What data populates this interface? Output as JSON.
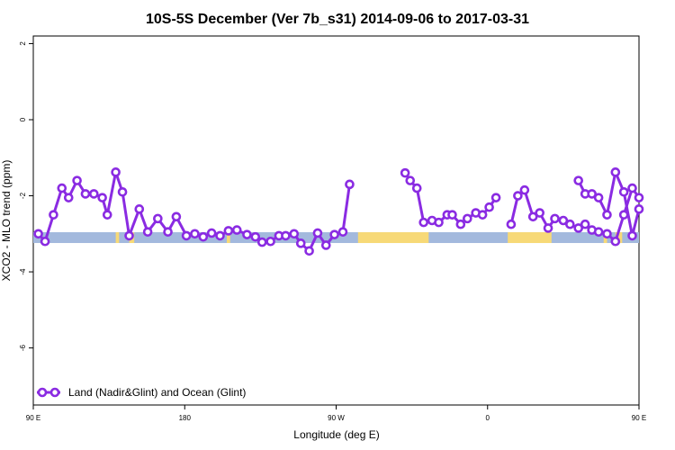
{
  "chart_data": {
    "type": "line",
    "title": "10S-5S December (Ver 7b_s31)   2014-09-06 to 2017-03-31",
    "xlabel": "Longitude (deg E)",
    "ylabel": "XCO2 - MLO trend (ppm)",
    "xlim": [
      90,
      450
    ],
    "ylim": [
      -7.5,
      2.2
    ],
    "x_ticks": [
      {
        "value": 90,
        "label": "90 E"
      },
      {
        "value": 180,
        "label": "180"
      },
      {
        "value": 270,
        "label": "90 W"
      },
      {
        "value": 360,
        "label": "0"
      },
      {
        "value": 450,
        "label": "90 E"
      }
    ],
    "y_ticks": [
      {
        "value": 2,
        "label": "2"
      },
      {
        "value": 0,
        "label": "0"
      },
      {
        "value": -2,
        "label": "-2"
      },
      {
        "value": -4,
        "label": "-4"
      },
      {
        "value": -6,
        "label": "-6"
      }
    ],
    "grid": false,
    "legend": {
      "position": "bottom-left",
      "entries": [
        "Land (Nadir&Glint) and Ocean (Glint)"
      ]
    },
    "colors": {
      "series": "#8a2be2",
      "ocean": "#a3b9dd",
      "land": "#f7d977"
    },
    "land_ocean_strip": {
      "y": -3.1,
      "land_spans": [
        [
          139,
          141
        ],
        [
          147,
          150
        ],
        [
          205,
          207
        ],
        [
          283,
          325
        ],
        [
          372,
          398
        ],
        [
          429,
          431
        ],
        [
          436,
          440
        ]
      ]
    },
    "series": [
      {
        "name": "Land (Nadir&Glint) and Ocean (Glint)",
        "segments": [
          {
            "x": [
              93,
              97,
              102,
              107,
              111,
              116,
              121,
              126,
              131,
              134,
              139,
              143,
              147,
              153,
              158,
              164,
              170,
              175,
              181,
              186,
              191,
              196,
              201,
              206,
              211,
              217,
              222,
              226,
              231,
              236,
              240,
              245,
              249,
              254,
              259,
              264,
              269,
              274,
              278,
              283
            ],
            "y": [
              -3.0,
              -3.2,
              -2.5,
              -1.8,
              -2.05,
              -1.6,
              -1.95,
              -1.95,
              -2.05,
              -2.5,
              -1.38,
              -1.9,
              -3.05,
              -2.35,
              -2.95,
              -2.6,
              -2.95,
              -2.55,
              -3.05,
              -3.0,
              -3.08,
              -2.98,
              -3.05,
              -2.92,
              -2.9,
              -3.02,
              -3.08,
              -3.22,
              -3.2,
              -3.05,
              -3.05,
              -3.0,
              -3.25,
              -3.45,
              -2.98,
              -3.3,
              -3.02,
              -2.95,
              -1.7,
              null
            ]
          },
          {
            "x": [
              311,
              314,
              318,
              322,
              327,
              331,
              336,
              339,
              344,
              348,
              353,
              357,
              361,
              365
            ],
            "y": [
              -1.4,
              -1.6,
              -1.8,
              -2.7,
              -2.65,
              -2.7,
              -2.5,
              -2.5,
              -2.75,
              -2.6,
              -2.45,
              -2.5,
              -2.3,
              -2.05
            ]
          },
          {
            "x": [
              374,
              378,
              382,
              387,
              391,
              396,
              400,
              405,
              409,
              414,
              418,
              422,
              426,
              431,
              436,
              441,
              446,
              450
            ],
            "y": [
              -2.75,
              -2.0,
              -1.85,
              -2.55,
              -2.45,
              -2.85,
              -2.6,
              -2.65,
              -2.75,
              -2.85,
              -2.75,
              -2.9,
              -2.95,
              -3.0,
              -3.2,
              -2.5,
              -1.8,
              -2.05
            ]
          },
          {
            "x": [
              414,
              418,
              422,
              426,
              431,
              436,
              441,
              446,
              450
            ],
            "y": [
              -1.6,
              -1.95,
              -1.95,
              -2.05,
              -2.5,
              -1.38,
              -1.9,
              -3.05,
              -2.35
            ]
          }
        ]
      }
    ]
  }
}
